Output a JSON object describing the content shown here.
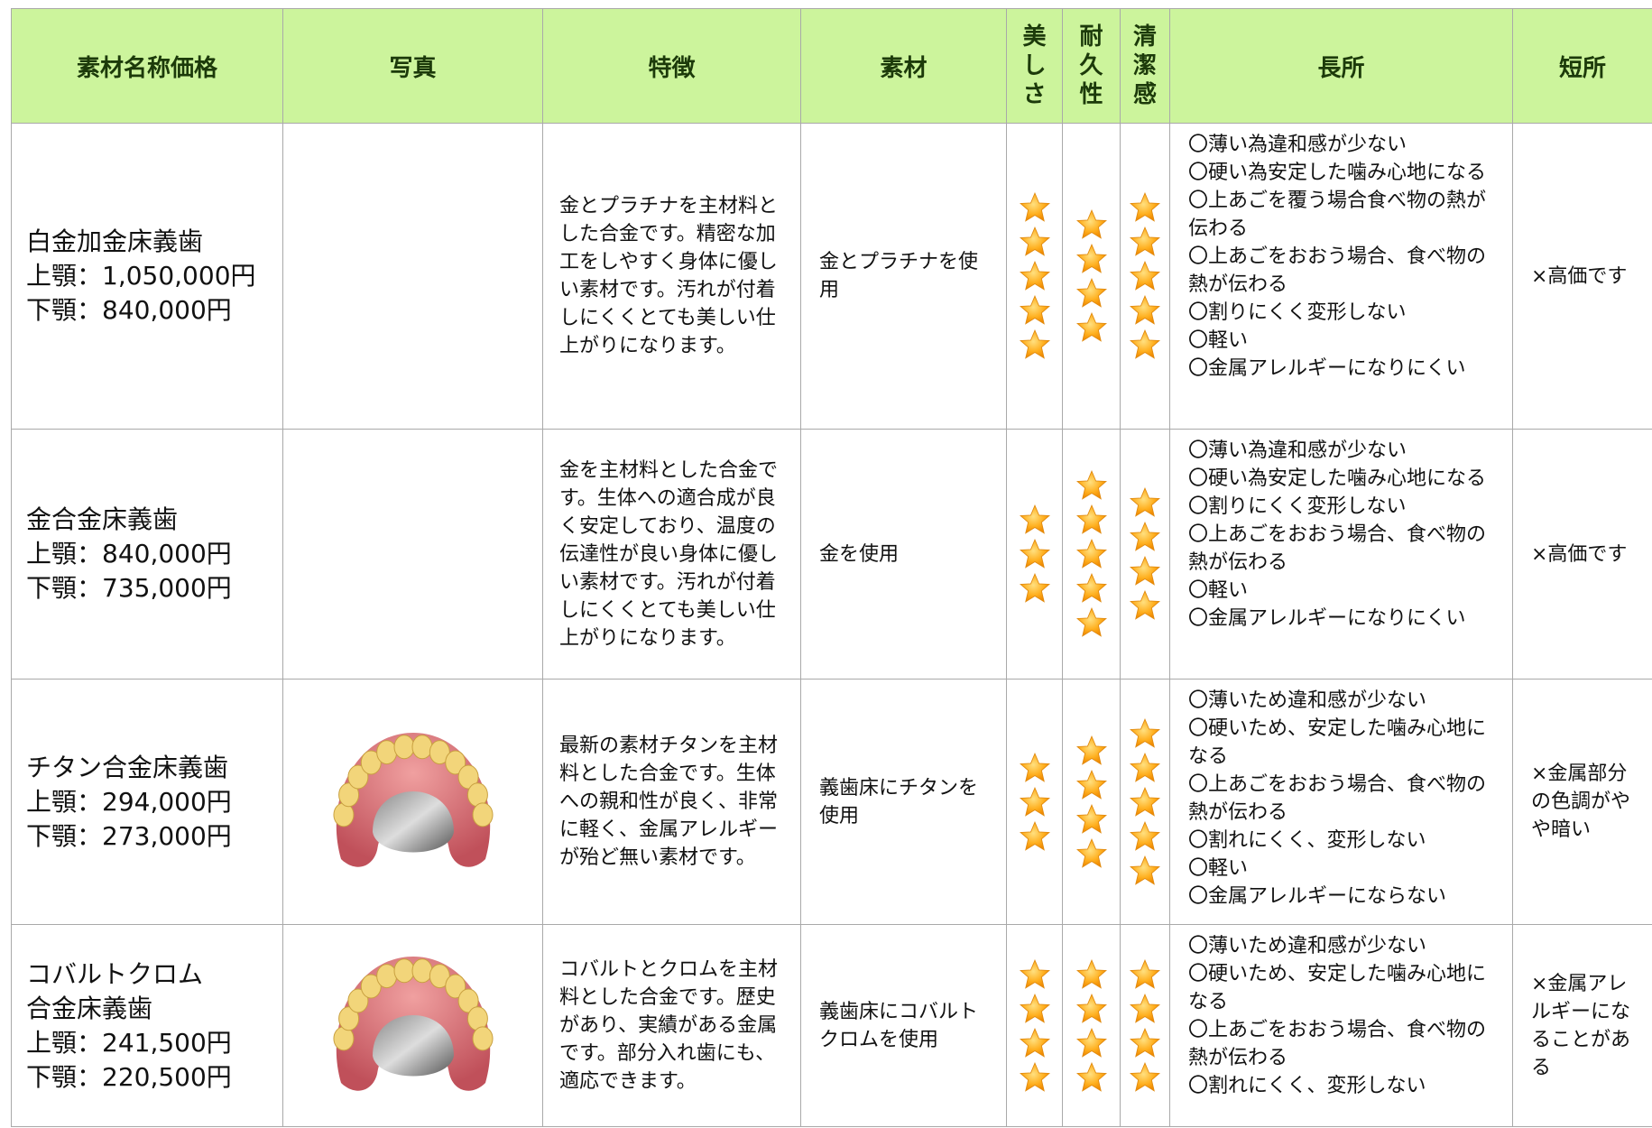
{
  "table": {
    "headers": [
      "素材名称価格",
      "写真",
      "特徴",
      "素材",
      "美しさ",
      "耐久性",
      "清潔感",
      "長所",
      "短所"
    ],
    "rows": [
      {
        "name": [
          "白金加金床義歯"
        ],
        "upper": "上顎：1,050,000円",
        "lower": "下顎：840,000円",
        "feature": "金とプラチナを主材料とした合金です。精密な加工をしやすく身体に優しい素材です。汚れが付着しにくくとても美しい仕上がりになります。",
        "material": "金とプラチナを使用",
        "ratings": [
          5,
          4,
          5
        ],
        "pros": [
          "〇薄い為違和感が少ない",
          "〇硬い為安定した噛み心地になる",
          "〇上あごを覆う場合食べ物の熱が伝わる",
          "〇上あごをおおう場合、食べ物の熱が伝わる",
          "〇割りにくく変形しない",
          "〇軽い",
          "〇金属アレルギーになりにくい"
        ],
        "cons": "×高価です"
      },
      {
        "name": [
          "金合金床義歯"
        ],
        "upper": "上顎：840,000円",
        "lower": "下顎：735,000円",
        "feature": "金を主材料とした合金です。生体への適合成が良く安定しており、温度の伝達性が良い身体に優しい素材です。汚れが付着しにくくとても美しい仕上がりになります。",
        "material": "金を使用",
        "ratings": [
          3,
          5,
          4
        ],
        "pros": [
          "〇薄い為違和感が少ない",
          "〇硬い為安定した噛み心地になる",
          "〇割りにくく変形しない",
          "〇上あごをおおう場合、食べ物の熱が伝わる",
          "〇軽い",
          "〇金属アレルギーになりにくい"
        ],
        "cons": "×高価です"
      },
      {
        "name": [
          "チタン合金床義歯"
        ],
        "upper": "上顎：294,000円",
        "lower": "下顎：273,000円",
        "feature": "最新の素材チタンを主材料とした合金です。生体への親和性が良く、非常に軽く、金属アレルギーが殆ど無い素材です。",
        "material": "義歯床にチタンを使用",
        "ratings": [
          3,
          4,
          5
        ],
        "pros": [
          "〇薄いため違和感が少ない",
          "〇硬いため、安定した噛み心地になる",
          "〇上あごをおおう場合、食べ物の熱が伝わる",
          "〇割れにくく、変形しない",
          "〇軽い",
          "〇金属アレルギーにならない"
        ],
        "cons": "×金属部分の色調がやや暗い"
      },
      {
        "name": [
          "コバルトクロム",
          "合金床義歯"
        ],
        "upper": "上顎：241,500円",
        "lower": "下顎：220,500円",
        "feature": "コバルトとクロムを主材料とした合金です。歴史があり、実績がある金属です。部分入れ歯にも、適応できます。",
        "material": "義歯床にコバルトクロムを使用",
        "ratings": [
          4,
          4,
          4
        ],
        "pros": [
          "〇薄いため違和感が少ない",
          "〇硬いため、安定した噛み心地になる",
          "〇上あごをおおう場合、食べ物の熱が伝わる",
          "〇割れにくく、変形しない"
        ],
        "cons": "×金属アレルギーになることがある"
      }
    ]
  }
}
